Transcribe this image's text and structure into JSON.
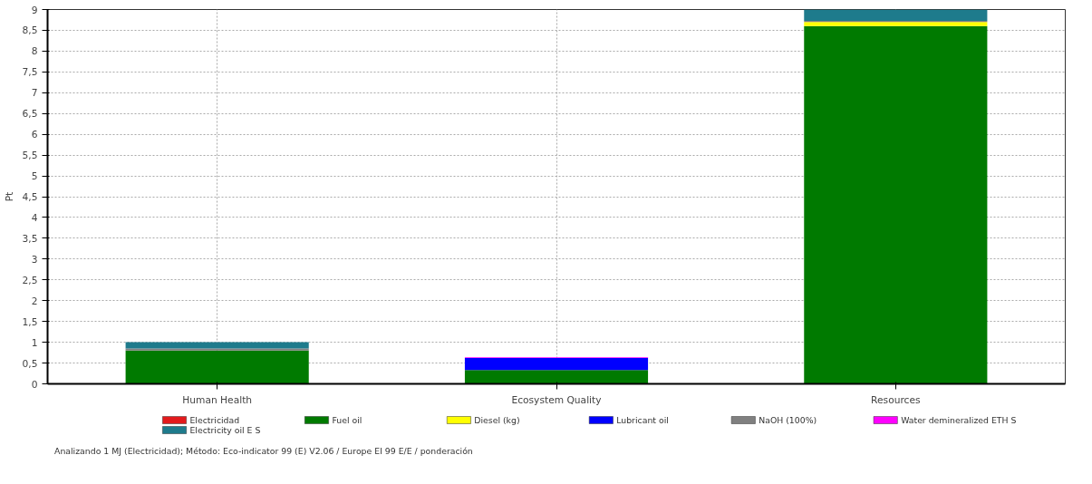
{
  "chart_data": {
    "type": "bar",
    "stacked": true,
    "ylabel": "Pt",
    "categories": [
      "Human Health",
      "Ecosystem Quality",
      "Resources"
    ],
    "series": [
      {
        "name": "Electricidad",
        "color": "#e31a1c",
        "values": [
          0,
          0,
          0
        ]
      },
      {
        "name": "Fuel oil",
        "color": "#007a00",
        "values": [
          0.8,
          0.33,
          8.6
        ]
      },
      {
        "name": "Diesel (kg)",
        "color": "#ffff00",
        "values": [
          0,
          0,
          0.1
        ]
      },
      {
        "name": "Lubricant oil",
        "color": "#0000ff",
        "values": [
          0,
          0.29,
          0
        ]
      },
      {
        "name": "NaOH (100%)",
        "color": "#808080",
        "values": [
          0.05,
          0,
          0.03
        ]
      },
      {
        "name": "Water demineralized ETH S",
        "color": "#ff00ff",
        "values": [
          0,
          0.02,
          0
        ]
      },
      {
        "name": "Electricity oil E S",
        "color": "#1e7b8c",
        "values": [
          0.15,
          0,
          0.27
        ]
      }
    ],
    "ylim": [
      0,
      9
    ],
    "yticks": [
      0,
      {
        "value": 0.5,
        "label": "0,5"
      },
      1,
      {
        "value": 1.5,
        "label": "1,5"
      },
      2,
      {
        "value": 2.5,
        "label": "2,5"
      },
      3,
      {
        "value": 3.5,
        "label": "3,5"
      },
      4,
      {
        "value": 4.5,
        "label": "4,5"
      },
      5,
      {
        "value": 5.5,
        "label": "5,5"
      },
      6,
      {
        "value": 6.5,
        "label": "6,5"
      },
      7,
      {
        "value": 7.5,
        "label": "7,5"
      },
      8,
      {
        "value": 8.5,
        "label": "8,5"
      },
      9
    ],
    "grid": true,
    "legend": "bottom",
    "annotations": [
      "Analizando 1 MJ (Electricidad);  Método: Eco-indicator 99 (E) V2.06 / Europe EI 99 E/E / ponderación"
    ]
  }
}
